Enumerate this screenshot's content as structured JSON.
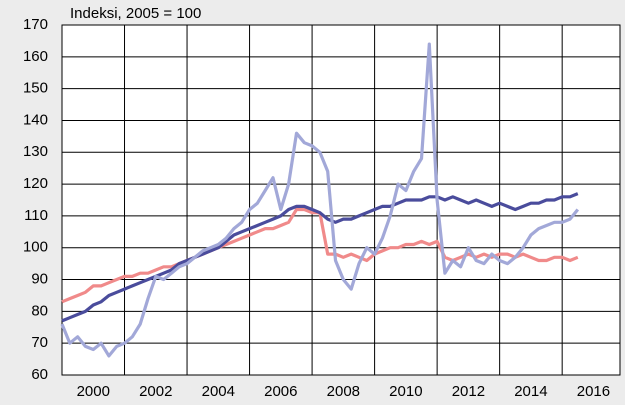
{
  "chart_data": {
    "type": "line",
    "annotation": "Indeksi, 2005 = 100",
    "x": [
      2000,
      2000.25,
      2000.5,
      2000.75,
      2001,
      2001.25,
      2001.5,
      2001.75,
      2002,
      2002.25,
      2002.5,
      2002.75,
      2003,
      2003.25,
      2003.5,
      2003.75,
      2004,
      2004.25,
      2004.5,
      2004.75,
      2005,
      2005.25,
      2005.5,
      2005.75,
      2006,
      2006.25,
      2006.5,
      2006.75,
      2007,
      2007.25,
      2007.5,
      2007.75,
      2008,
      2008.25,
      2008.5,
      2008.75,
      2009,
      2009.25,
      2009.5,
      2009.75,
      2010,
      2010.25,
      2010.5,
      2010.75,
      2011,
      2011.25,
      2011.5,
      2011.75,
      2012,
      2012.25,
      2012.5,
      2012.75,
      2013,
      2013.25,
      2013.5,
      2013.75,
      2014,
      2014.25,
      2014.5,
      2014.75,
      2015,
      2015.25,
      2015.5,
      2015.75,
      2016,
      2016.25,
      2016.5
    ],
    "series": [
      {
        "color": "#f08a8a",
        "values": [
          83,
          84,
          85,
          86,
          88,
          88,
          89,
          90,
          91,
          91,
          92,
          92,
          93,
          94,
          94,
          95,
          96,
          97,
          98,
          99,
          100,
          101,
          102,
          103,
          104,
          105,
          106,
          106,
          107,
          108,
          112,
          112,
          111,
          111,
          98,
          98,
          97,
          98,
          97,
          96,
          98,
          99,
          100,
          100,
          101,
          101,
          102,
          101,
          102,
          97,
          96,
          97,
          98,
          97,
          98,
          97,
          98,
          98,
          97,
          98,
          97,
          96,
          96,
          97,
          97,
          96,
          97
        ]
      },
      {
        "color": "#4a4c9c",
        "values": [
          77,
          78,
          79,
          80,
          82,
          83,
          85,
          86,
          87,
          88,
          89,
          90,
          91,
          92,
          93,
          95,
          96,
          97,
          98,
          99,
          100,
          102,
          104,
          105,
          106,
          107,
          108,
          109,
          110,
          112,
          113,
          113,
          112,
          111,
          109,
          108,
          109,
          109,
          110,
          111,
          112,
          113,
          113,
          114,
          115,
          115,
          115,
          116,
          116,
          115,
          116,
          115,
          114,
          115,
          114,
          113,
          114,
          113,
          112,
          113,
          114,
          114,
          115,
          115,
          116,
          116,
          117
        ]
      },
      {
        "color": "#a2a8d8",
        "values": [
          76,
          70,
          72,
          69,
          68,
          70,
          66,
          69,
          70,
          72,
          76,
          84,
          91,
          90,
          92,
          94,
          95,
          97,
          99,
          100,
          101,
          103,
          106,
          108,
          112,
          114,
          118,
          122,
          112,
          120,
          136,
          133,
          132,
          130,
          124,
          96,
          90,
          87,
          95,
          100,
          98,
          103,
          110,
          120,
          118,
          124,
          128,
          164,
          115,
          92,
          96,
          94,
          100,
          96,
          95,
          98,
          96,
          95,
          97,
          100,
          104,
          106,
          107,
          108,
          108,
          109,
          112
        ]
      }
    ],
    "xlim": [
      2000,
      2017.85
    ],
    "xticks": [
      2000,
      2002,
      2004,
      2006,
      2008,
      2010,
      2012,
      2014,
      2016
    ],
    "ylim": [
      60,
      170
    ],
    "yticks": [
      60,
      70,
      80,
      90,
      100,
      110,
      120,
      130,
      140,
      150,
      160,
      170
    ],
    "grid": true
  }
}
